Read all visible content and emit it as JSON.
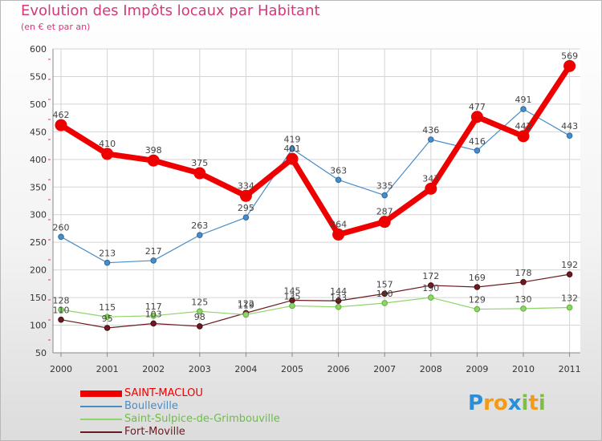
{
  "header": {
    "title": "Evolution des Impôts locaux par Habitant",
    "subtitle": "(en € et par an)"
  },
  "chart_data": {
    "type": "line",
    "title": "Evolution des Impôts locaux par Habitant",
    "subtitle": "(en € et par an)",
    "categories": [
      "2000",
      "2001",
      "2002",
      "2003",
      "2004",
      "2005",
      "2006",
      "2007",
      "2008",
      "2009",
      "2010",
      "2011"
    ],
    "yticks": [
      "50",
      "100",
      "150",
      "200",
      "250",
      "300",
      "350",
      "400",
      "450",
      "500",
      "550",
      "600"
    ],
    "ylim": [
      50,
      600
    ],
    "grid": true,
    "legend_position": "bottom-left",
    "series": [
      {
        "name": "SAINT-MACLOU",
        "color": "#ee0000",
        "values": [
          462,
          410,
          398,
          375,
          334,
          401,
          264,
          287,
          347,
          477,
          442,
          569
        ],
        "labels": [
          "462",
          "410",
          "398",
          "375",
          "334",
          "401",
          "264",
          "287",
          "347",
          "477",
          "442",
          "569"
        ]
      },
      {
        "name": "Boulleville",
        "color": "#4a8cc6",
        "values": [
          260,
          213,
          217,
          263,
          295,
          419,
          363,
          335,
          436,
          416,
          491,
          443
        ],
        "labels": [
          "260",
          "213",
          "217",
          "263",
          "295",
          "419",
          "363",
          "335",
          "436",
          "416",
          "491",
          "443"
        ]
      },
      {
        "name": "Saint-Sulpice-de-Grimbouville",
        "color": "#8fd46a",
        "values": [
          128,
          115,
          117,
          125,
          119,
          135,
          133,
          140,
          150,
          129,
          130,
          132
        ],
        "labels": [
          "128",
          "115",
          "117",
          "125",
          "119",
          "135",
          "133",
          "140",
          "150",
          "129",
          "130",
          "132"
        ]
      },
      {
        "name": "Fort-Moville",
        "color": "#6b1a22",
        "values": [
          110,
          95,
          103,
          98,
          122,
          145,
          144,
          157,
          172,
          169,
          178,
          192
        ],
        "labels": [
          "110",
          "95",
          "103",
          "98",
          "122",
          "145",
          "144",
          "157",
          "172",
          "169",
          "178",
          "192"
        ]
      }
    ]
  },
  "logo": {
    "letters": [
      "P",
      "r",
      "o",
      "x",
      "i",
      "t",
      "i"
    ],
    "colors": [
      "#2a8fd8",
      "#f39a1a",
      "#f39a1a",
      "#2a8fd8",
      "#7ec045",
      "#f39a1a",
      "#7ec045"
    ]
  }
}
